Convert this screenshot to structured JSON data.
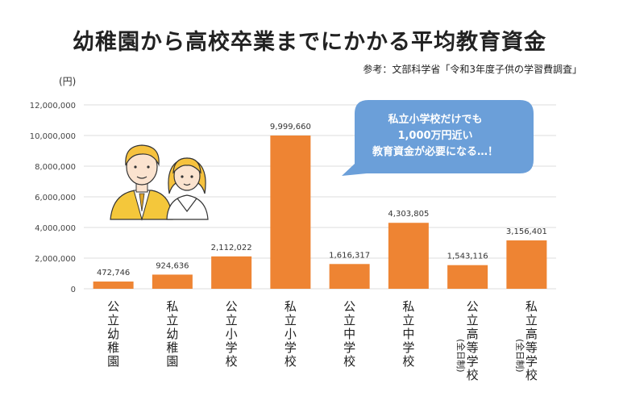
{
  "title": "幼稚園から高校卒業までにかかる平均教育資金",
  "source": "参考：文部科学省「令和3年度子供の学習費調査」",
  "unit": "(円)",
  "callout": [
    "私立小学校だけでも",
    "1,000万円近い",
    "教育資金が必要になる…！"
  ],
  "colors": {
    "bar": "#ee8433",
    "bubble": "#6b9fd9",
    "grid": "#dddddd"
  },
  "chart_data": {
    "type": "bar",
    "categories": [
      "公立幼稚園",
      "私立幼稚園",
      "公立小学校",
      "私立小学校",
      "公立中学校",
      "私立中学校",
      "公立高等学校(全日制)",
      "私立高等学校(全日制)"
    ],
    "category_lines": [
      {
        "main": "公立幼稚園",
        "sub": ""
      },
      {
        "main": "私立幼稚園",
        "sub": ""
      },
      {
        "main": "公立小学校",
        "sub": ""
      },
      {
        "main": "私立小学校",
        "sub": ""
      },
      {
        "main": "公立中学校",
        "sub": ""
      },
      {
        "main": "私立中学校",
        "sub": ""
      },
      {
        "main": "公立高等学校",
        "sub": "(全日制)"
      },
      {
        "main": "私立高等学校",
        "sub": "(全日制)"
      }
    ],
    "values": [
      472746,
      924636,
      2112022,
      9999660,
      1616317,
      4303805,
      1543116,
      3156401
    ],
    "value_labels": [
      "472,746",
      "924,636",
      "2,112,022",
      "9,999,660",
      "1,616,317",
      "4,303,805",
      "1,543,116",
      "3,156,401"
    ],
    "ylim": [
      0,
      12000000
    ],
    "yticks": [
      0,
      2000000,
      4000000,
      6000000,
      8000000,
      10000000,
      12000000
    ],
    "ytick_labels": [
      "0",
      "2,000,000",
      "4,000,000",
      "6,000,000",
      "8,000,000",
      "10,000,000",
      "12,000,000"
    ],
    "grid": true
  }
}
